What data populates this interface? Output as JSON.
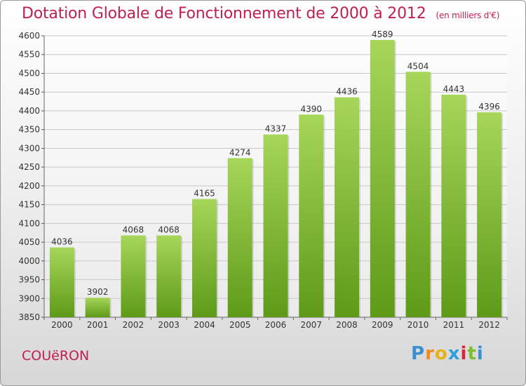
{
  "header": {
    "title": "Dotation Globale de Fonctionnement de 2000 à 2012",
    "unit": "(en milliers d'€)"
  },
  "footer": {
    "city": "COUëRON",
    "logo_text": "Proxiti",
    "logo_letters": [
      "P",
      "r",
      "o",
      "x",
      "i",
      "t",
      "i"
    ],
    "logo_colors": [
      "#3a8fd0",
      "#f08a1c",
      "#e6b21a",
      "#2e9fd8",
      "#d9253a",
      "#7bbf2a",
      "#3a8fd0"
    ]
  },
  "colors": {
    "bar_top": "#a6d65a",
    "bar_bottom": "#5e9a18",
    "grid": "#c8c8c8",
    "title": "#c0204f"
  },
  "chart_data": {
    "type": "bar",
    "title": "Dotation Globale de Fonctionnement de 2000 à 2012",
    "categories": [
      "2000",
      "2001",
      "2002",
      "2003",
      "2004",
      "2005",
      "2006",
      "2007",
      "2008",
      "2009",
      "2010",
      "2011",
      "2012"
    ],
    "values": [
      4036,
      3902,
      4068,
      4068,
      4165,
      4274,
      4337,
      4390,
      4436,
      4589,
      4504,
      4443,
      4396
    ],
    "ylim": [
      3850,
      4600
    ],
    "yticks": [
      3850,
      3900,
      3950,
      4000,
      4050,
      4100,
      4150,
      4200,
      4250,
      4300,
      4350,
      4400,
      4450,
      4500,
      4550,
      4600
    ],
    "grid": true
  }
}
